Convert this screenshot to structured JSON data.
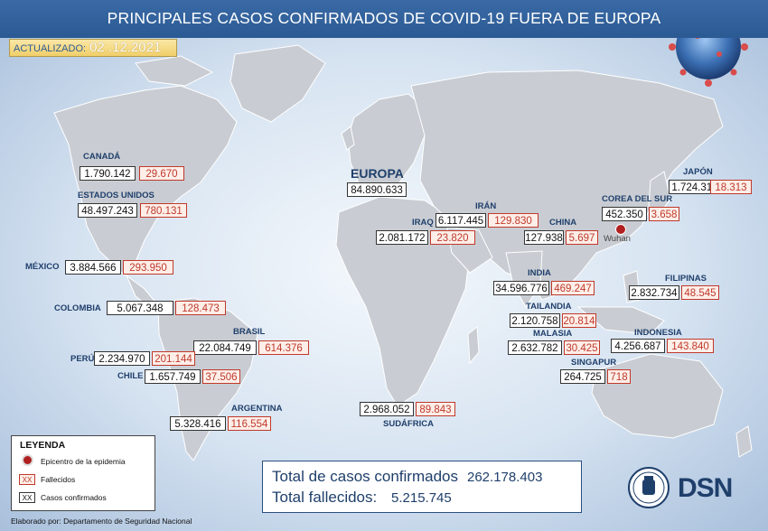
{
  "title": "PRINCIPALES CASOS CONFIRMADOS DE COVID-19 FUERA DE EUROPA",
  "updated": {
    "label": "ACTUALIZADO:",
    "date": "02 .12.2021"
  },
  "europe": {
    "label": "EUROPA",
    "cases": "84.890.633"
  },
  "countries": {
    "canada": {
      "name": "CANADÁ",
      "cases": "1.790.142",
      "deaths": "29.670"
    },
    "usa": {
      "name": "ESTADOS UNIDOS",
      "cases": "48.497.243",
      "deaths": "780.131"
    },
    "mexico": {
      "name": "MÉXICO",
      "cases": "3.884.566",
      "deaths": "293.950"
    },
    "colombia": {
      "name": "COLOMBIA",
      "cases": "5.067.348",
      "deaths": "128.473"
    },
    "brasil": {
      "name": "BRASIL",
      "cases": "22.084.749",
      "deaths": "614.376"
    },
    "peru": {
      "name": "PERÚ",
      "cases": "2.234.970",
      "deaths": "201.144"
    },
    "chile": {
      "name": "CHILE",
      "cases": "1.657.749",
      "deaths": "37.506"
    },
    "argentina": {
      "name": "ARGENTINA",
      "cases": "5.328.416",
      "deaths": "116.554"
    },
    "sudafrica": {
      "name": "SUDÁFRICA",
      "cases": "2.968.052",
      "deaths": "89.843"
    },
    "iran": {
      "name": "IRÁN",
      "cases": "6.117.445",
      "deaths": "129.830"
    },
    "iraq": {
      "name": "IRAQ",
      "cases": "2.081.172",
      "deaths": "23.820"
    },
    "china": {
      "name": "CHINA",
      "cases": "127.938",
      "deaths": "5.697",
      "epicenter": "Wuhan"
    },
    "india": {
      "name": "INDIA",
      "cases": "34.596.776",
      "deaths": "469.247"
    },
    "tailandia": {
      "name": "TAILANDIA",
      "cases": "2.120.758",
      "deaths": "20.814"
    },
    "malasia": {
      "name": "MALASIA",
      "cases": "2.632.782",
      "deaths": "30.425"
    },
    "singapur": {
      "name": "SINGAPUR",
      "cases": "264.725",
      "deaths": "718"
    },
    "indonesia": {
      "name": "INDONESIA",
      "cases": "4.256.687",
      "deaths": "143.840"
    },
    "filipinas": {
      "name": "FILIPINAS",
      "cases": "2.832.734",
      "deaths": "48.545"
    },
    "corea": {
      "name": "COREA DEL SUR",
      "cases": "452.350",
      "deaths": "3.658"
    },
    "japon": {
      "name": "JAPÓN",
      "cases": "1.724.319",
      "deaths": "18.313"
    }
  },
  "legend": {
    "title": "LEYENDA",
    "epicenter": "Epicentro de la epidemia",
    "deaths_symbol": "XX",
    "deaths": "Fallecidos",
    "cases_symbol": "XX",
    "cases": "Casos confirmados"
  },
  "totals": {
    "cases_label": "Total de casos confirmados",
    "cases": "262.178.403",
    "deaths_label": "Total fallecidos:",
    "deaths": "5.215.745"
  },
  "credit": "Elaborado por: Departamento de Seguridad Nacional",
  "logo": {
    "text": "DSN"
  },
  "colors": {
    "banner": "#2b5a93",
    "land": "#c9cdd3",
    "deaths": "#c0392b",
    "cases_border": "#333333",
    "label": "#1f3f6b"
  }
}
